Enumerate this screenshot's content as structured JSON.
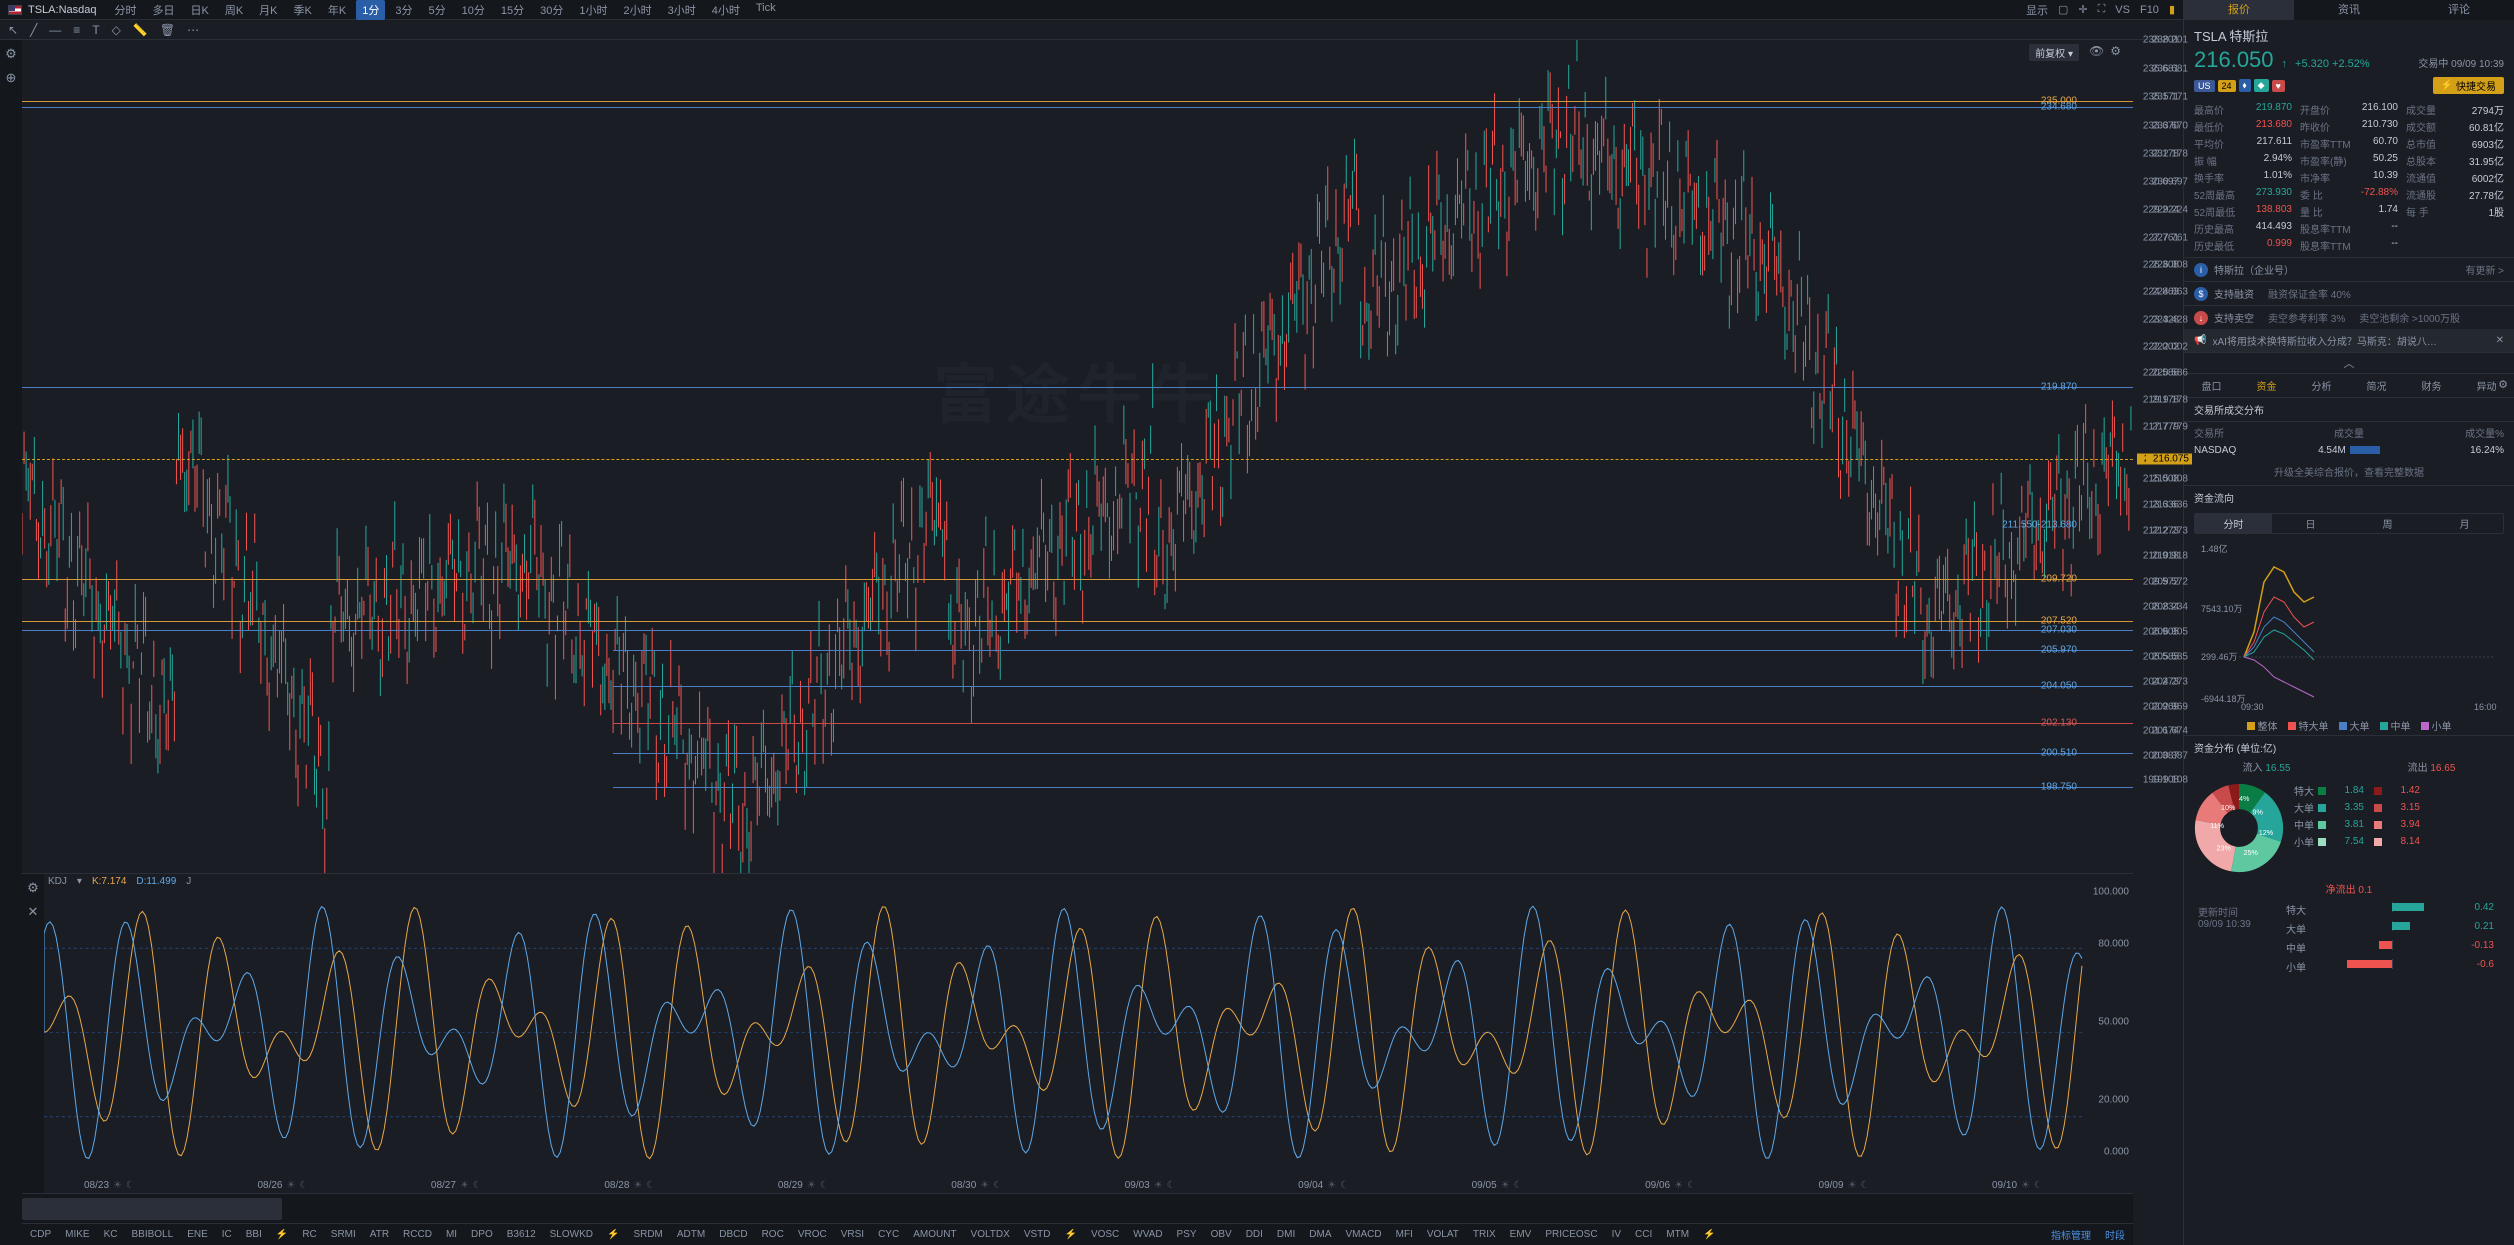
{
  "topbar": {
    "symbol": "TSLA:Nasdaq",
    "timeframes": [
      "分时",
      "多日",
      "日K",
      "周K",
      "月K",
      "季K",
      "年K",
      "1分",
      "3分",
      "5分",
      "10分",
      "15分",
      "30分",
      "1小时",
      "2小时",
      "3小时",
      "4小时",
      "Tick"
    ],
    "active_tf": "1分",
    "right": {
      "display": "显示",
      "vs": "VS",
      "f10": "F10"
    }
  },
  "chart": {
    "adjust_label": "前复权 ▾",
    "watermark": "富途牛牛",
    "y_axis": [
      238.201,
      236.681,
      235.171,
      233.67,
      232.178,
      230.697,
      229.224,
      227.761,
      226.308,
      224.863,
      223.428,
      222.002,
      220.586,
      219.178,
      217.779,
      215.008,
      213.636,
      212.273,
      210.918,
      209.572,
      208.234,
      206.905,
      205.585,
      204.273,
      202.969,
      201.674,
      200.387,
      199.108
    ],
    "current_price": 216.075,
    "lines": [
      {
        "y": 235.0,
        "color": "orange",
        "label": "235.000",
        "side": "orange"
      },
      {
        "y": 234.68,
        "color": "blue",
        "label": "234.680",
        "side": "blue"
      },
      {
        "y": 219.87,
        "color": "blue",
        "label": "219.870",
        "side": "blue"
      },
      {
        "y": 212.6,
        "color": "none",
        "label": "211.550-213.680",
        "box": true
      },
      {
        "y": 209.72,
        "color": "orange",
        "label": "209.720",
        "side": "orange"
      },
      {
        "y": 207.52,
        "color": "orange",
        "label": "207.520",
        "side": "orange"
      },
      {
        "y": 207.03,
        "color": "blue",
        "label": "207.030",
        "side": "blue"
      },
      {
        "y": 205.97,
        "color": "blue",
        "label": "205.970",
        "side": "blue"
      },
      {
        "y": 204.05,
        "color": "blue",
        "label": "204.050",
        "side": "blue"
      },
      {
        "y": 202.13,
        "color": "red",
        "label": "202.130",
        "side": "red",
        "x_label": "202.130"
      },
      {
        "y": 200.51,
        "color": "blue",
        "label": "200.510",
        "side": "blue"
      },
      {
        "y": 198.75,
        "color": "blue",
        "label": "198.750",
        "side": "blue"
      }
    ],
    "dates": [
      "08/23",
      "08/26",
      "08/27",
      "08/28",
      "08/29",
      "08/30",
      "09/03",
      "09/04",
      "09/05",
      "09/06",
      "09/09",
      "09/10"
    ]
  },
  "kdj": {
    "label": "KDJ",
    "k": "K:7.174",
    "d": "D:11.499",
    "j": "J",
    "axis": [
      100.0,
      80.0,
      50.0,
      20.0,
      0.0
    ]
  },
  "indicators": [
    "CDP",
    "MIKE",
    "KC",
    "BBIBOLL",
    "ENE",
    "IC",
    "BBI",
    "⚡",
    "RC",
    "SRMI",
    "ATR",
    "RCCD",
    "MI",
    "DPO",
    "B3612",
    "SLOWKD",
    "⚡",
    "SRDM",
    "ADTM",
    "DBCD",
    "ROC",
    "VROC",
    "VRSI",
    "CYC",
    "AMOUNT",
    "VOLTDX",
    "VSTD",
    "⚡",
    "VOSC",
    "WVAD",
    "PSY",
    "OBV",
    "DDI",
    "DMI",
    "DMA",
    "VMACD",
    "MFI",
    "VOLAT",
    "TRIX",
    "EMV",
    "PRICEOSC",
    "IV",
    "CCI",
    "MTM",
    "⚡"
  ],
  "ind_right": {
    "mgr": "指标管理",
    "ts": "时段"
  },
  "sidebar": {
    "tabs": [
      "报价",
      "资讯",
      "评论"
    ],
    "active_tab": "报价",
    "name": "TSLA  特斯拉",
    "price": "216.050",
    "change": "+5.320 +2.52%",
    "status": "交易中 09/09 10:39",
    "fast_trade": "快捷交易",
    "stats": [
      {
        "l": "最高价",
        "v": "219.870",
        "c": "up"
      },
      {
        "l": "开盘价",
        "v": "216.100"
      },
      {
        "l": "成交量",
        "v": "2794万"
      },
      {
        "l": "最低价",
        "v": "213.680",
        "c": "dn"
      },
      {
        "l": "昨收价",
        "v": "210.730"
      },
      {
        "l": "成交额",
        "v": "60.81亿"
      },
      {
        "l": "平均价",
        "v": "217.611"
      },
      {
        "l": "市盈率TTM",
        "v": "60.70"
      },
      {
        "l": "总市值",
        "v": "6903亿"
      },
      {
        "l": "振  幅",
        "v": "2.94%"
      },
      {
        "l": "市盈率(静)",
        "v": "50.25"
      },
      {
        "l": "总股本",
        "v": "31.95亿"
      },
      {
        "l": "换手率",
        "v": "1.01%"
      },
      {
        "l": "市净率",
        "v": "10.39"
      },
      {
        "l": "流通值",
        "v": "6002亿"
      },
      {
        "l": "52周最高",
        "v": "273.930",
        "c": "up"
      },
      {
        "l": "委  比",
        "v": "-72.88%",
        "c": "dn"
      },
      {
        "l": "流通股",
        "v": "27.78亿"
      },
      {
        "l": "52周最低",
        "v": "138.803",
        "c": "dn"
      },
      {
        "l": "量  比",
        "v": "1.74"
      },
      {
        "l": "每  手",
        "v": "1股"
      },
      {
        "l": "历史最高",
        "v": "414.493"
      },
      {
        "l": "股息率TTM",
        "v": "--"
      },
      {
        "l": "",
        "v": ""
      },
      {
        "l": "历史最低",
        "v": "0.999",
        "c": "dn"
      },
      {
        "l": "股息率TTM",
        "v": "--"
      },
      {
        "l": "",
        "v": ""
      }
    ],
    "enterprise": {
      "label": "特斯拉（企业号）",
      "more": "有更新 >"
    },
    "margin": {
      "label": "支持融资",
      "detail": "融资保证金率 40%"
    },
    "short": {
      "label": "支持卖空",
      "d1": "卖空参考利率 3%",
      "d2": "卖空池剩余 >1000万股"
    },
    "news": "xAI将用技术换特斯拉收入分成？马斯克：胡说八…",
    "subtabs": [
      "盘口",
      "资金",
      "分析",
      "简况",
      "财务",
      "异动"
    ],
    "active_subtab": "资金",
    "dist_title": "交易所成交分布",
    "dist_head": [
      "交易所",
      "成交量",
      "成交量%"
    ],
    "dist_rows": [
      [
        "NASDAQ",
        "4.54M",
        "16.24%"
      ]
    ],
    "upgrade": "升级全美综合报价，查看完整数据",
    "flow_title": "资金流向",
    "flow_tabs": [
      "分时",
      "日",
      "周",
      "月"
    ],
    "flow_active": "分时",
    "flow_labels": {
      "top": "1.48亿",
      "mid": "7543.10万",
      "bot": "299.46万",
      "neg": "-6944.18万",
      "x0": "09:30",
      "x1": "16:00"
    },
    "legend": [
      "整体",
      "特大单",
      "大单",
      "中单",
      "小单"
    ],
    "legend_colors": [
      "#d4a017",
      "#ef5350",
      "#4a7fc8",
      "#26a69a",
      "#b968c7"
    ],
    "donut_title": "资金分布 (单位:亿)",
    "io_head": {
      "in": "流入",
      "in_v": "16.55",
      "out": "流出",
      "out_v": "16.65"
    },
    "donut_rows": [
      {
        "n": "特大",
        "in": "1.84",
        "out": "1.42",
        "ci": "#0a7d44",
        "co": "#8b1a1a"
      },
      {
        "n": "大单",
        "in": "3.35",
        "out": "3.15",
        "ci": "#26a69a",
        "co": "#c84a4a"
      },
      {
        "n": "中单",
        "in": "3.81",
        "out": "3.94",
        "ci": "#5ec8a0",
        "co": "#e87a7a"
      },
      {
        "n": "小单",
        "in": "7.54",
        "out": "8.14",
        "ci": "#9ae0c0",
        "co": "#f0a8a8"
      }
    ],
    "donut_pct": [
      "10%",
      "4%",
      "9%",
      "11%",
      "23%",
      "25%",
      "12%",
      "6%"
    ],
    "net_title": "净流出 0.1",
    "net_rows": [
      {
        "n": "特大",
        "v": "0.42",
        "c": "#26a69a",
        "dir": 1,
        "w": 24
      },
      {
        "n": "大单",
        "v": "0.21",
        "c": "#26a69a",
        "dir": 1,
        "w": 14
      },
      {
        "n": "中单",
        "v": "-0.13",
        "c": "#ef5350",
        "dir": -1,
        "w": 10
      },
      {
        "n": "小单",
        "v": "-0.6",
        "c": "#ef5350",
        "dir": -1,
        "w": 34
      }
    ],
    "update": {
      "l": "更新时间",
      "v": "09/09 10:39"
    }
  },
  "colors": {
    "bg": "#1a1d24",
    "up": "#26a69a",
    "dn": "#ef5350",
    "accent": "#d4a017",
    "blue": "#4a7fc8"
  }
}
